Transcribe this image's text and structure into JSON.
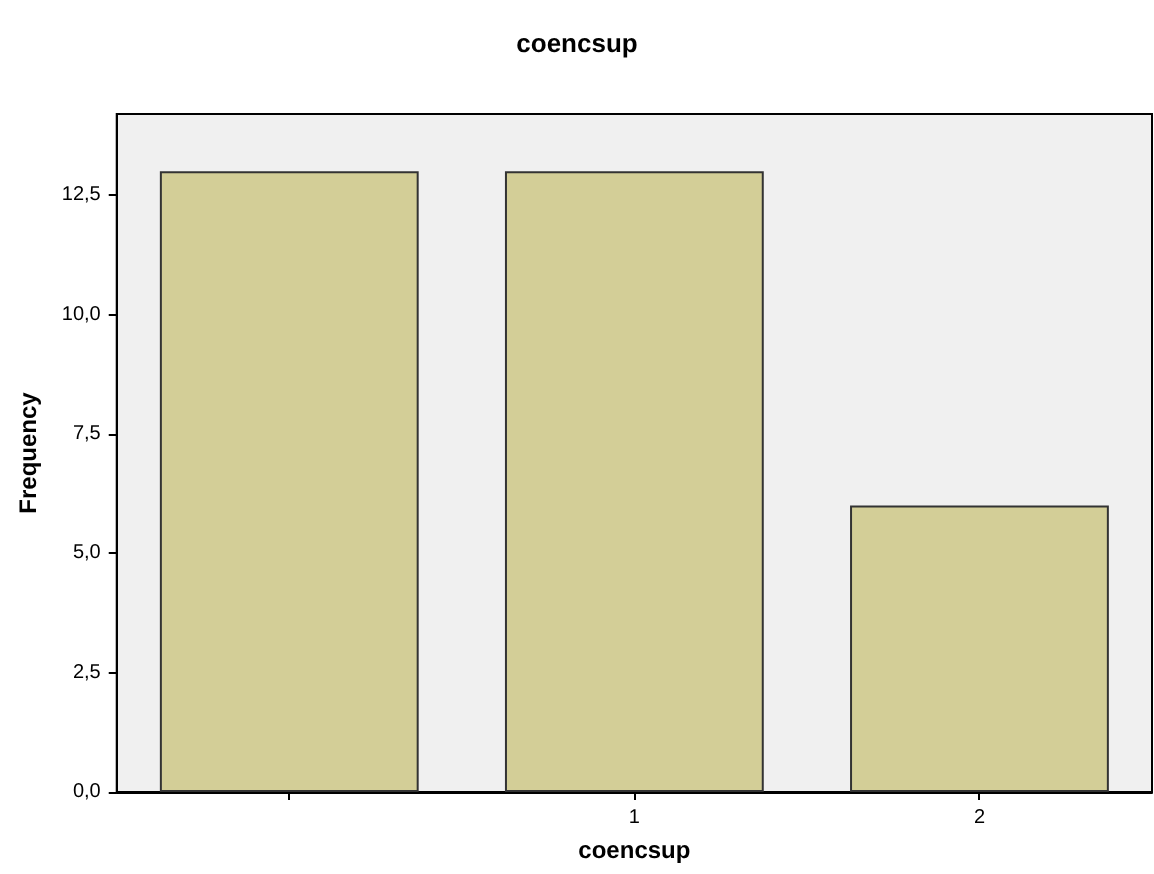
{
  "chart_data": {
    "type": "bar",
    "title": "coencsup",
    "xlabel": "coencsup",
    "ylabel": "Frequency",
    "categories": [
      null,
      "1",
      "2"
    ],
    "values": [
      13,
      13,
      6
    ],
    "color": "#d3ce97",
    "ylim": [
      0,
      14.2
    ],
    "yticks": [
      {
        "value": 0,
        "label": "0,0"
      },
      {
        "value": 2.5,
        "label": "2,5"
      },
      {
        "value": 5,
        "label": "5,0"
      },
      {
        "value": 7.5,
        "label": "7,5"
      },
      {
        "value": 10,
        "label": "10,0"
      },
      {
        "value": 12.5,
        "label": "12,5"
      }
    ],
    "grid": false
  }
}
